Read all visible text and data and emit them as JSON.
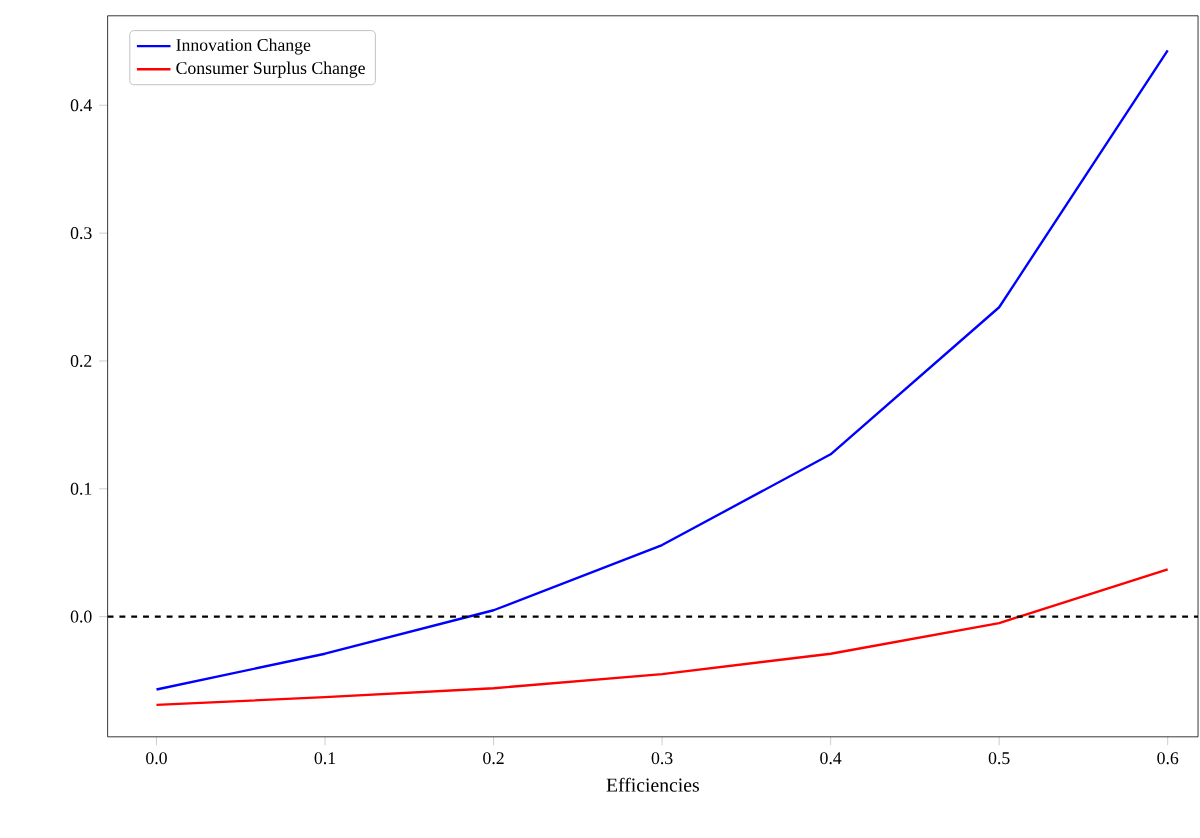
{
  "chart_data": {
    "type": "line",
    "xlabel": "Efficiencies",
    "x": [
      0.0,
      0.1,
      0.2,
      0.3,
      0.4,
      0.5,
      0.6
    ],
    "series": [
      {
        "name": "Innovation Change",
        "color": "#0000ff",
        "values": [
          -0.057,
          -0.029,
          0.005,
          0.056,
          0.127,
          0.242,
          0.443
        ]
      },
      {
        "name": "Consumer Surplus Change",
        "color": "#ff0000",
        "values": [
          -0.069,
          -0.063,
          -0.056,
          -0.045,
          -0.029,
          -0.005,
          0.037
        ]
      }
    ],
    "xlim": [
      -0.029,
      0.618
    ],
    "ylim": [
      -0.094,
      0.47
    ],
    "xticks": [
      {
        "value": 0,
        "label": "0.0"
      },
      0.1,
      0.2,
      0.3,
      0.4,
      0.5,
      0.6
    ],
    "yticks": [
      {
        "value": 0,
        "label": "0.0"
      },
      0.1,
      0.2,
      0.3,
      0.4
    ],
    "ref_lines": [
      {
        "axis": "y",
        "value": 0,
        "color": "#000000",
        "line_style": "dashed"
      }
    ],
    "legend": "top left"
  }
}
